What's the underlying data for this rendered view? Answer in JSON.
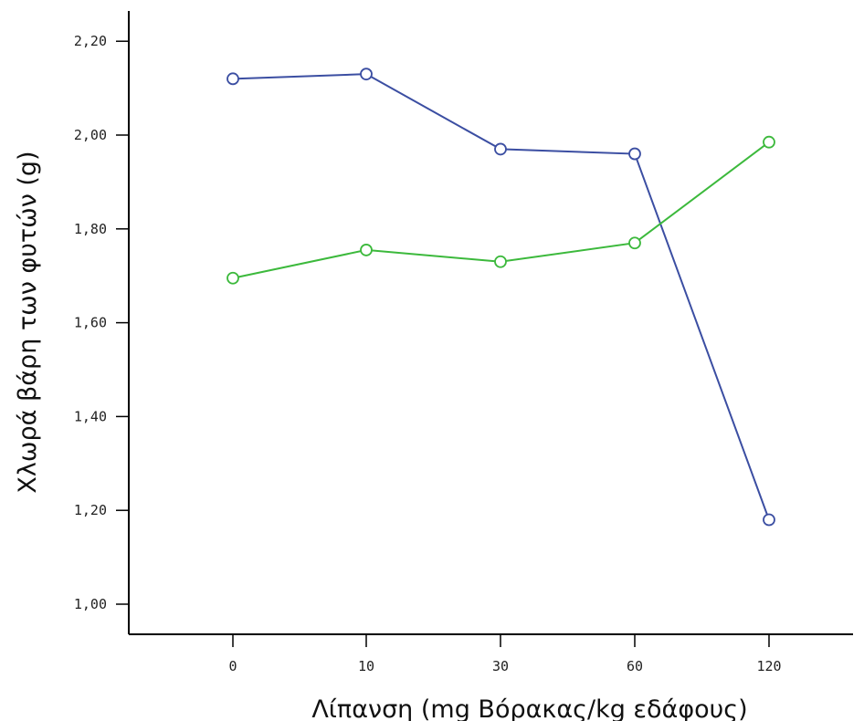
{
  "chart_data": {
    "type": "line",
    "categories": [
      "0",
      "10",
      "30",
      "60",
      "120"
    ],
    "series": [
      {
        "name": "",
        "color": "#3b4ea2",
        "marker": "open-circle",
        "values": [
          2.12,
          2.13,
          1.97,
          1.96,
          1.18
        ]
      },
      {
        "name": "",
        "color": "#3cb93c",
        "marker": "open-circle",
        "values": [
          1.695,
          1.755,
          1.73,
          1.77,
          1.985
        ]
      }
    ],
    "ylim": [
      0.94,
      2.27
    ],
    "yticks": [
      1.0,
      1.2,
      1.4,
      1.6,
      1.8,
      2.0,
      2.2
    ],
    "ytick_labels": [
      "1,00",
      "1,20",
      "1,40",
      "1,60",
      "1,80",
      "2,00",
      "2,20"
    ],
    "xlabel": "Λίπανση (mg Βόρακας/kg εδάφους)",
    "ylabel": "Χλωρά βάρη των φυτών (g)",
    "title": "",
    "grid": false,
    "legend": "none"
  }
}
